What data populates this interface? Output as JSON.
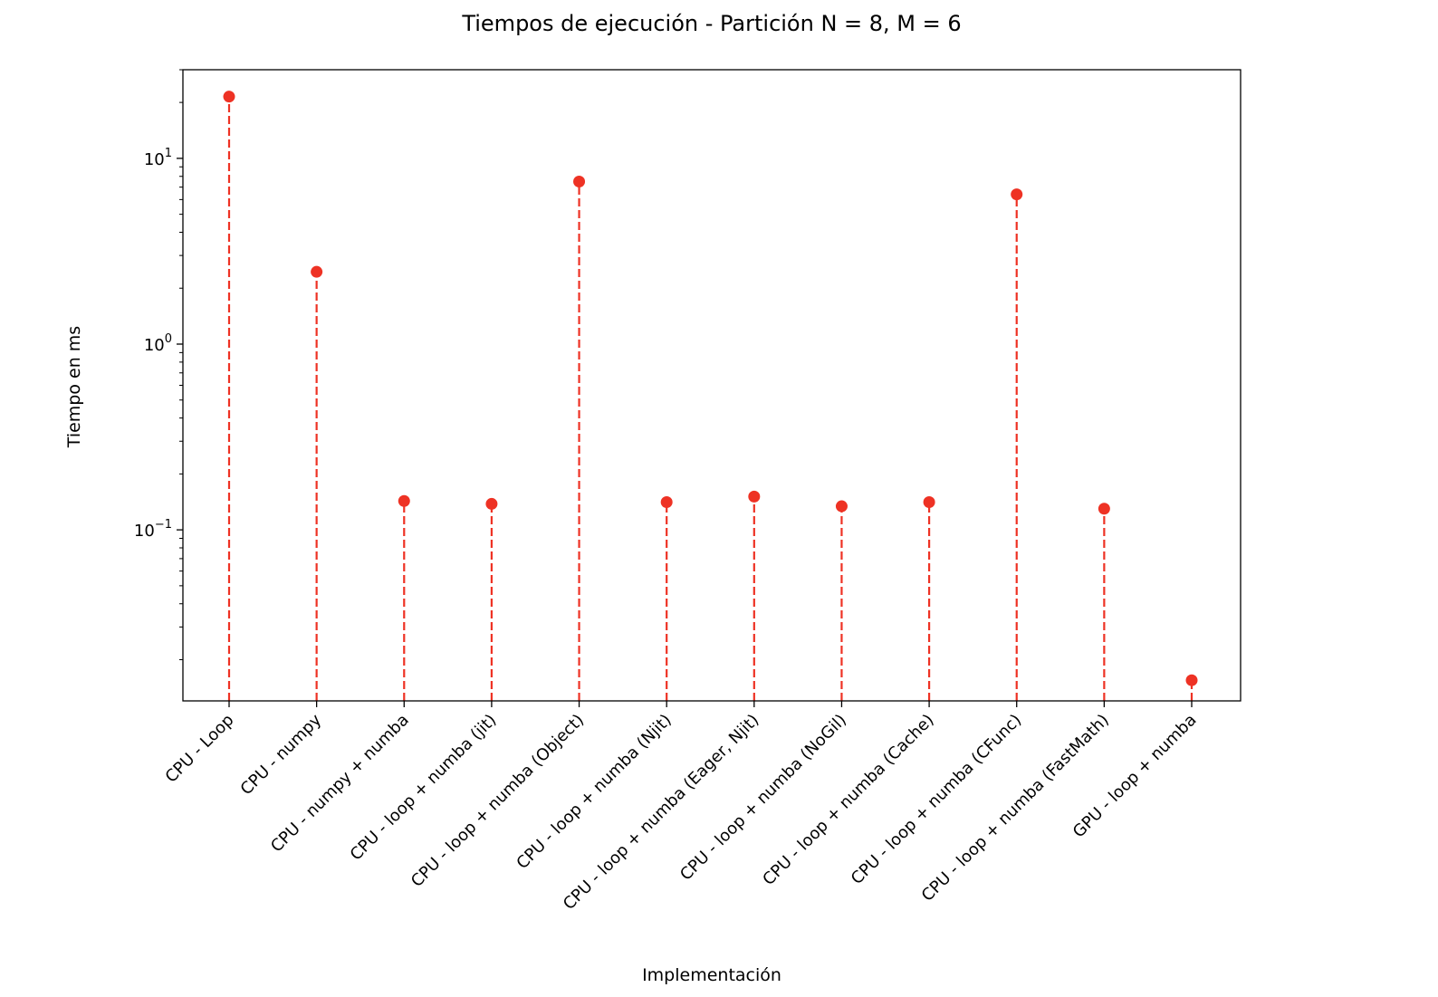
{
  "chart_data": {
    "type": "stem",
    "title": "Tiempos de ejecución - Partición N = 8, M = 6",
    "xlabel": "Implementación",
    "ylabel": "Tiempo en ms",
    "yscale": "log",
    "ylim": [
      0.012,
      30
    ],
    "yticks": [
      {
        "value": 10,
        "base": "10",
        "exp": "1"
      },
      {
        "value": 1,
        "base": "10",
        "exp": "0"
      },
      {
        "value": 0.1,
        "base": "10",
        "exp": "−1"
      }
    ],
    "grid": false,
    "legend": "none",
    "color": "#ee3224",
    "categories": [
      "CPU - Loop",
      "CPU - numpy",
      "CPU - numpy + numba",
      "CPU - loop + numba (jit)",
      "CPU - loop + numba (Object)",
      "CPU - loop + numba (Njit)",
      "CPU - loop + numba (Eager, Njit)",
      "CPU - loop + numba (NoGil)",
      "CPU - loop + numba (Cache)",
      "CPU - loop + numba (CFunc)",
      "CPU - loop + numba (FastMath)",
      "GPU - loop + numba"
    ],
    "values": [
      21.5,
      2.45,
      0.143,
      0.138,
      7.5,
      0.141,
      0.151,
      0.134,
      0.141,
      6.4,
      0.13,
      0.0155
    ]
  }
}
